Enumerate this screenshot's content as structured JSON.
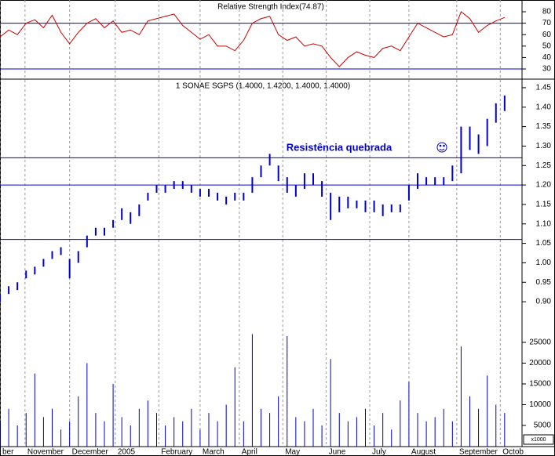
{
  "chart_data": [
    {
      "type": "line",
      "title": "Relative Strength Index(74.87)",
      "color": "#cc0000",
      "x": [
        0,
        4,
        8,
        12,
        16,
        20,
        24,
        28,
        32,
        36,
        40,
        44,
        48,
        52,
        56,
        60,
        64,
        68,
        72,
        76,
        80,
        84,
        88,
        92,
        96,
        100,
        104,
        108,
        112,
        116,
        120,
        124,
        128,
        132,
        136,
        140,
        144,
        148,
        152,
        156,
        160,
        164,
        168,
        172,
        176,
        180,
        184,
        188,
        192,
        196,
        200,
        204,
        208,
        212,
        216,
        220,
        224,
        228,
        232
      ],
      "values": [
        58,
        64,
        60,
        70,
        73,
        66,
        77,
        62,
        52,
        62,
        70,
        74,
        66,
        72,
        62,
        64,
        60,
        72,
        74,
        76,
        78,
        68,
        62,
        56,
        60,
        50,
        50,
        46,
        55,
        70,
        74,
        76,
        60,
        55,
        58,
        50,
        52,
        50,
        40,
        32,
        40,
        45,
        42,
        40,
        48,
        50,
        46,
        58,
        70,
        66,
        62,
        58,
        60,
        80,
        74,
        62,
        68,
        72,
        75
      ],
      "hlines": [
        70,
        30
      ],
      "ylim": [
        21.8,
        88.9
      ],
      "yticks": [
        30,
        40,
        50,
        60,
        70,
        80
      ]
    },
    {
      "type": "hilo",
      "title": "1 SONAE SGPS (1.4000, 1.4200, 1.4000, 1.4000)",
      "color": "#0000cc",
      "annotation": "Resistência quebrada",
      "x": [
        0,
        4,
        8,
        12,
        16,
        20,
        24,
        28,
        32,
        36,
        40,
        44,
        48,
        52,
        56,
        60,
        64,
        68,
        72,
        76,
        80,
        84,
        88,
        92,
        96,
        100,
        104,
        108,
        112,
        116,
        120,
        124,
        128,
        132,
        136,
        140,
        144,
        148,
        152,
        156,
        160,
        164,
        168,
        172,
        176,
        180,
        184,
        188,
        192,
        196,
        200,
        204,
        208,
        212,
        216,
        220,
        224,
        228,
        232
      ],
      "high": [
        0.92,
        0.94,
        0.95,
        0.98,
        0.99,
        1.01,
        1.03,
        1.04,
        1.01,
        1.03,
        1.07,
        1.09,
        1.09,
        1.11,
        1.14,
        1.13,
        1.15,
        1.18,
        1.2,
        1.2,
        1.21,
        1.21,
        1.2,
        1.19,
        1.19,
        1.18,
        1.17,
        1.18,
        1.18,
        1.22,
        1.25,
        1.28,
        1.25,
        1.22,
        1.2,
        1.23,
        1.23,
        1.21,
        1.18,
        1.17,
        1.17,
        1.16,
        1.16,
        1.16,
        1.15,
        1.15,
        1.15,
        1.2,
        1.23,
        1.22,
        1.22,
        1.22,
        1.25,
        1.35,
        1.35,
        1.33,
        1.37,
        1.41,
        1.43
      ],
      "low": [
        0.9,
        0.92,
        0.93,
        0.96,
        0.97,
        0.99,
        1.01,
        1.02,
        0.96,
        1.0,
        1.04,
        1.07,
        1.07,
        1.09,
        1.11,
        1.1,
        1.12,
        1.16,
        1.18,
        1.18,
        1.19,
        1.19,
        1.18,
        1.17,
        1.17,
        1.16,
        1.15,
        1.16,
        1.16,
        1.18,
        1.22,
        1.25,
        1.21,
        1.18,
        1.17,
        1.19,
        1.2,
        1.17,
        1.11,
        1.13,
        1.14,
        1.14,
        1.13,
        1.13,
        1.12,
        1.13,
        1.13,
        1.16,
        1.19,
        1.2,
        1.2,
        1.2,
        1.21,
        1.23,
        1.29,
        1.28,
        1.3,
        1.36,
        1.39
      ],
      "hlines": [
        1.27,
        1.2,
        1.06
      ],
      "ylim": [
        0.87,
        1.468
      ],
      "yticks": [
        {
          "value": 0.9,
          "label": "0.90"
        },
        0.95,
        {
          "value": 1.0,
          "label": "1.00"
        },
        1.05,
        {
          "value": 1.1,
          "label": "1.10"
        },
        1.15,
        {
          "value": 1.2,
          "label": "1.20"
        },
        1.25,
        {
          "value": 1.3,
          "label": "1.30"
        },
        1.35,
        {
          "value": 1.4,
          "label": "1.40"
        },
        1.45
      ]
    },
    {
      "type": "bar",
      "color": "#0000cc",
      "unit_label": "x1000",
      "x": [
        0,
        4,
        8,
        12,
        16,
        20,
        24,
        28,
        32,
        36,
        40,
        44,
        48,
        52,
        56,
        60,
        64,
        68,
        72,
        76,
        80,
        84,
        88,
        92,
        96,
        100,
        104,
        108,
        112,
        116,
        120,
        124,
        128,
        132,
        136,
        140,
        144,
        148,
        152,
        156,
        160,
        164,
        168,
        172,
        176,
        180,
        184,
        188,
        192,
        196,
        200,
        204,
        208,
        212,
        216,
        220,
        224,
        228,
        232
      ],
      "values": [
        6000,
        9000,
        5000,
        8000,
        17500,
        7000,
        9000,
        4000,
        6000,
        12000,
        20000,
        8000,
        6000,
        15000,
        7000,
        5000,
        9000,
        11000,
        8000,
        5000,
        7000,
        6000,
        9000,
        4000,
        8000,
        6000,
        10000,
        19000,
        6000,
        27000,
        9000,
        8000,
        12000,
        26500,
        7000,
        6000,
        9000,
        5000,
        21000,
        8000,
        6000,
        7000,
        9000,
        5000,
        8000,
        4000,
        11000,
        15500,
        8000,
        6000,
        7000,
        9000,
        6000,
        24000,
        12000,
        9000,
        17000,
        10000,
        8000
      ],
      "ylim": [
        0,
        28200
      ],
      "yticks": [
        5000,
        10000,
        15000,
        20000,
        25000
      ],
      "xlim": [
        0,
        240
      ],
      "xticks": [
        {
          "value": 0,
          "label": "ber"
        },
        {
          "value": 11.5,
          "label": "November"
        },
        {
          "value": 32,
          "label": "December"
        },
        {
          "value": 53,
          "label": "2005"
        },
        {
          "value": 73,
          "label": "February"
        },
        {
          "value": 92,
          "label": "March"
        },
        {
          "value": 110,
          "label": "April"
        },
        {
          "value": 130,
          "label": "May"
        },
        {
          "value": 150,
          "label": "June"
        },
        {
          "value": 170,
          "label": "July"
        },
        {
          "value": 188,
          "label": "August"
        },
        {
          "value": 210,
          "label": "September"
        },
        {
          "value": 230,
          "label": "Octob"
        }
      ]
    }
  ]
}
